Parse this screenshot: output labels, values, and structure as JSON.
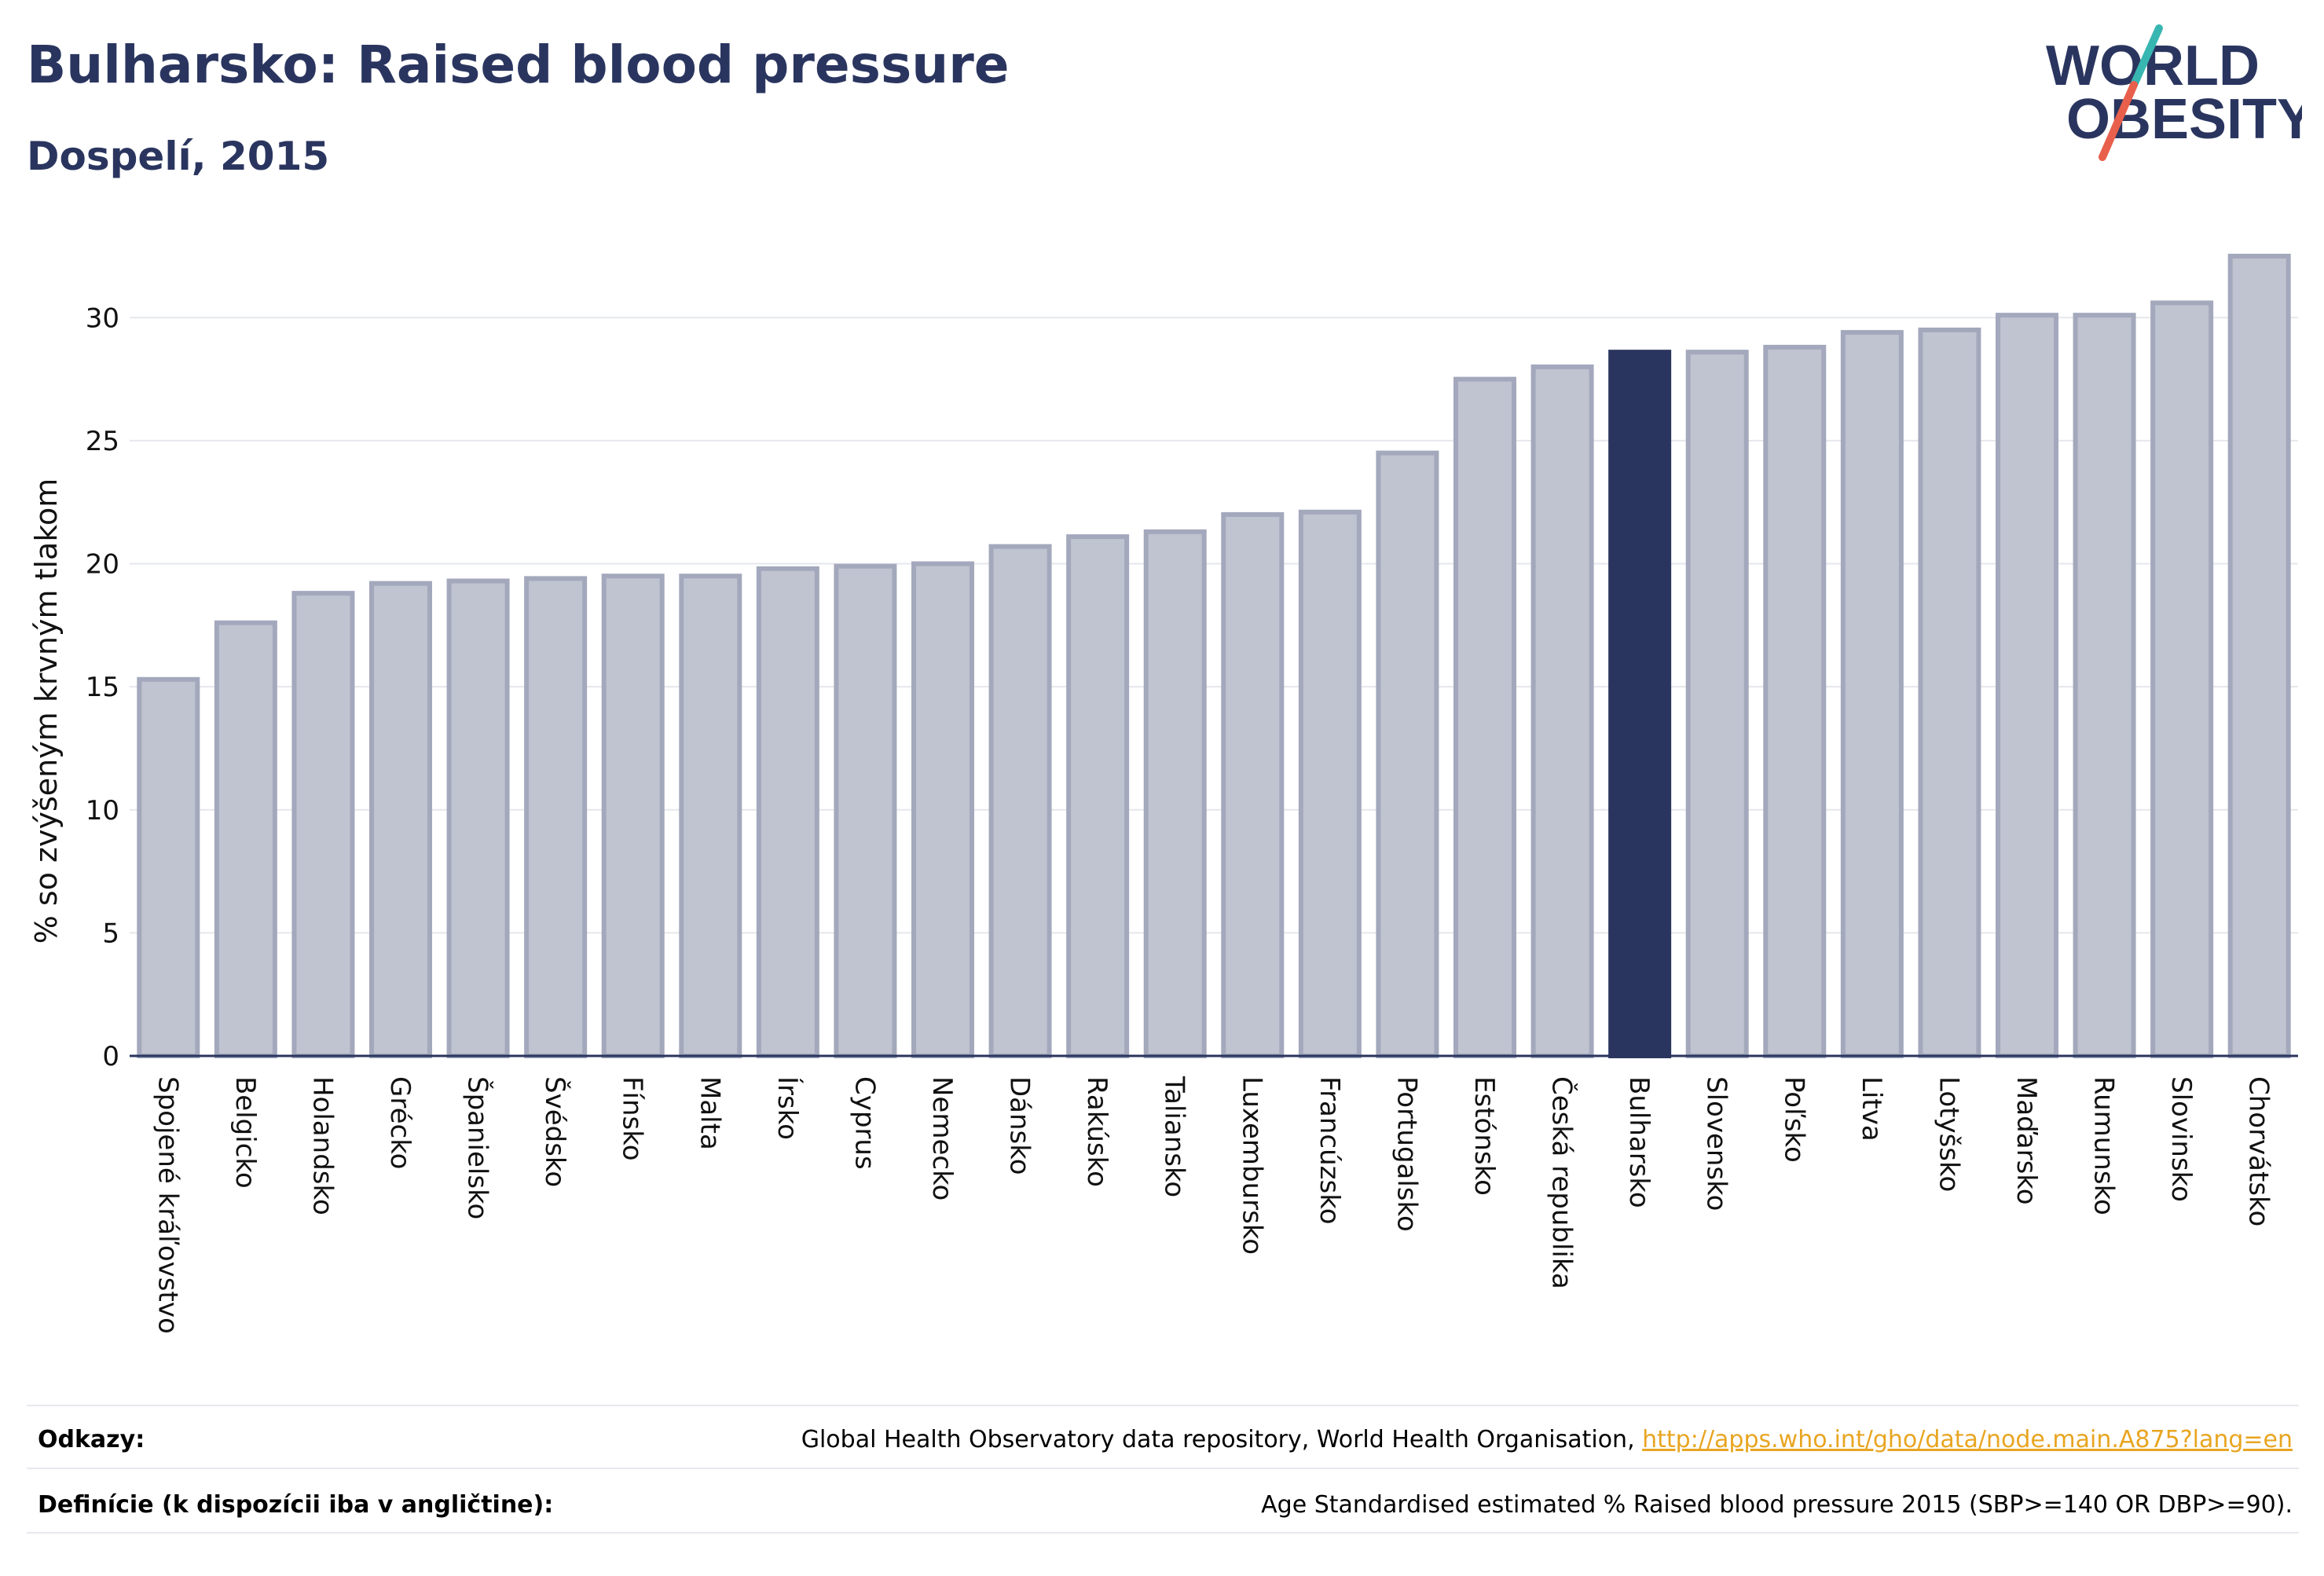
{
  "header": {
    "title": "Bulharsko: Raised blood pressure",
    "subtitle": "Dospelí, 2015"
  },
  "logo": {
    "line1": "WORLD",
    "line2": "OBESITY",
    "colors": {
      "text": "#2a355f",
      "slash_teal": "#38b6b2",
      "slash_red": "#e8604c"
    }
  },
  "chart_data": {
    "type": "bar",
    "ylabel": "% so zvýšeným krvným tlakom",
    "ylim": [
      0,
      32.5
    ],
    "yticks": [
      0,
      5,
      10,
      15,
      20,
      25,
      30
    ],
    "grid": true,
    "highlight": "Bulharsko",
    "colors": {
      "bar": "#c0c3d0",
      "bar_border": "#a3a8bc",
      "highlight": "#2a355f"
    },
    "categories": [
      "Spojené kráľovstvo",
      "Belgicko",
      "Holandsko",
      "Grécko",
      "Španielsko",
      "Švédsko",
      "Fínsko",
      "Malta",
      "Írsko",
      "Cyprus",
      "Nemecko",
      "Dánsko",
      "Rakúsko",
      "Taliansko",
      "Luxembursko",
      "Francúzsko",
      "Portugalsko",
      "Estónsko",
      "Česká republika",
      "Bulharsko",
      "Slovensko",
      "Poľsko",
      "Litva",
      "Lotyšsko",
      "Maďarsko",
      "Rumunsko",
      "Slovinsko",
      "Chorvátsko"
    ],
    "values": [
      15.3,
      17.6,
      18.8,
      19.2,
      19.3,
      19.4,
      19.5,
      19.5,
      19.8,
      19.9,
      20.0,
      20.7,
      21.1,
      21.3,
      22.0,
      22.1,
      24.5,
      27.5,
      28.0,
      28.6,
      28.6,
      28.8,
      29.4,
      29.5,
      30.1,
      30.1,
      30.6,
      32.5
    ]
  },
  "footer": {
    "references_label": "Odkazy:",
    "references_text": "Global Health Observatory data repository, World Health Organisation, ",
    "references_link": "http://apps.who.int/gho/data/node.main.A875?lang=en",
    "definitions_label": "Definície (k dispozícii iba v angličtine):",
    "definitions_text": "Age Standardised estimated % Raised blood pressure 2015 (SBP>=140 OR DBP>=90)."
  }
}
